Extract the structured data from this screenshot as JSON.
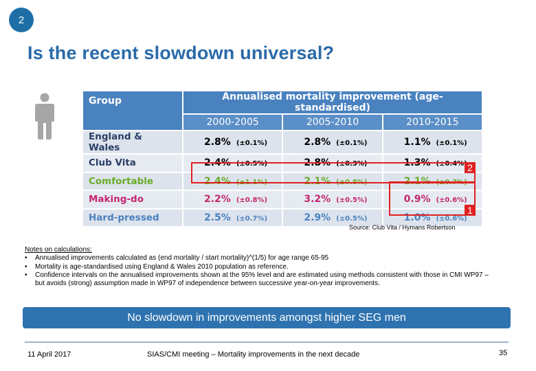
{
  "slide": {
    "number_badge": "2",
    "title": "Is the recent slowdown universal?"
  },
  "table": {
    "group_header": "Group",
    "main_header": "Annualised mortality improvement (age-standardised)",
    "periods": [
      "2000-2005",
      "2005-2010",
      "2010-2015"
    ],
    "rows": [
      {
        "group": "England & Wales",
        "cells": [
          {
            "v": "2.8%",
            "ci": "(±0.1%)"
          },
          {
            "v": "2.8%",
            "ci": "(±0.1%)"
          },
          {
            "v": "1.1%",
            "ci": "(±0.1%)"
          }
        ]
      },
      {
        "group": "Club Vita",
        "cells": [
          {
            "v": "2.4%",
            "ci": "(±0.5%)"
          },
          {
            "v": "2.8%",
            "ci": "(±0.3%)"
          },
          {
            "v": "1.3%",
            "ci": "(±0.4%)"
          }
        ]
      },
      {
        "group": "Comfortable",
        "cells": [
          {
            "v": "2.4%",
            "ci": "(±1.1%)"
          },
          {
            "v": "2.1%",
            "ci": "(±0.8%)"
          },
          {
            "v": "2.1%",
            "ci": "(±0.7%)"
          }
        ]
      },
      {
        "group": "Making-do",
        "cells": [
          {
            "v": "2.2%",
            "ci": "(±0.8%)"
          },
          {
            "v": "3.2%",
            "ci": "(±0.5%)"
          },
          {
            "v": "0.9%",
            "ci": "(±0.6%)"
          }
        ]
      },
      {
        "group": "Hard-pressed",
        "cells": [
          {
            "v": "2.5%",
            "ci": "(±0.7%)"
          },
          {
            "v": "2.9%",
            "ci": "(±0.5%)"
          },
          {
            "v": "1.0%",
            "ci": "(±0.6%)"
          }
        ]
      }
    ],
    "highlight_tags": {
      "tag_a": "2",
      "tag_b": "1"
    }
  },
  "source": "Source: Club Vita / Hymans Robertson",
  "notes": {
    "heading": "Notes on calculations:",
    "items": [
      "Annualised improvements calculated as (end mortality / start mortality)^(1/5) for age range 65-95",
      "Mortality is age-standardised using England & Wales 2010 population as reference.",
      "Confidence intervals on the annualised improvements shown at the 95% level and are estimated using methods consistent with those in CMI WP97 – but avoids (strong) assumption made in WP97 of independence between successive year-on-year improvements."
    ]
  },
  "banner": "No slowdown in improvements amongst higher SEG men",
  "footer": {
    "date": "11 April 2017",
    "event": "SIAS/CMI meeting – Mortality improvements in the next decade",
    "page": "35"
  },
  "colors": {
    "accent_blue": "#2a6aa8",
    "header_blue": "#4a82c0",
    "comfortable_green": "#6bab2a",
    "making_do_magenta": "#c2276f",
    "highlight_red": "#e02020"
  }
}
